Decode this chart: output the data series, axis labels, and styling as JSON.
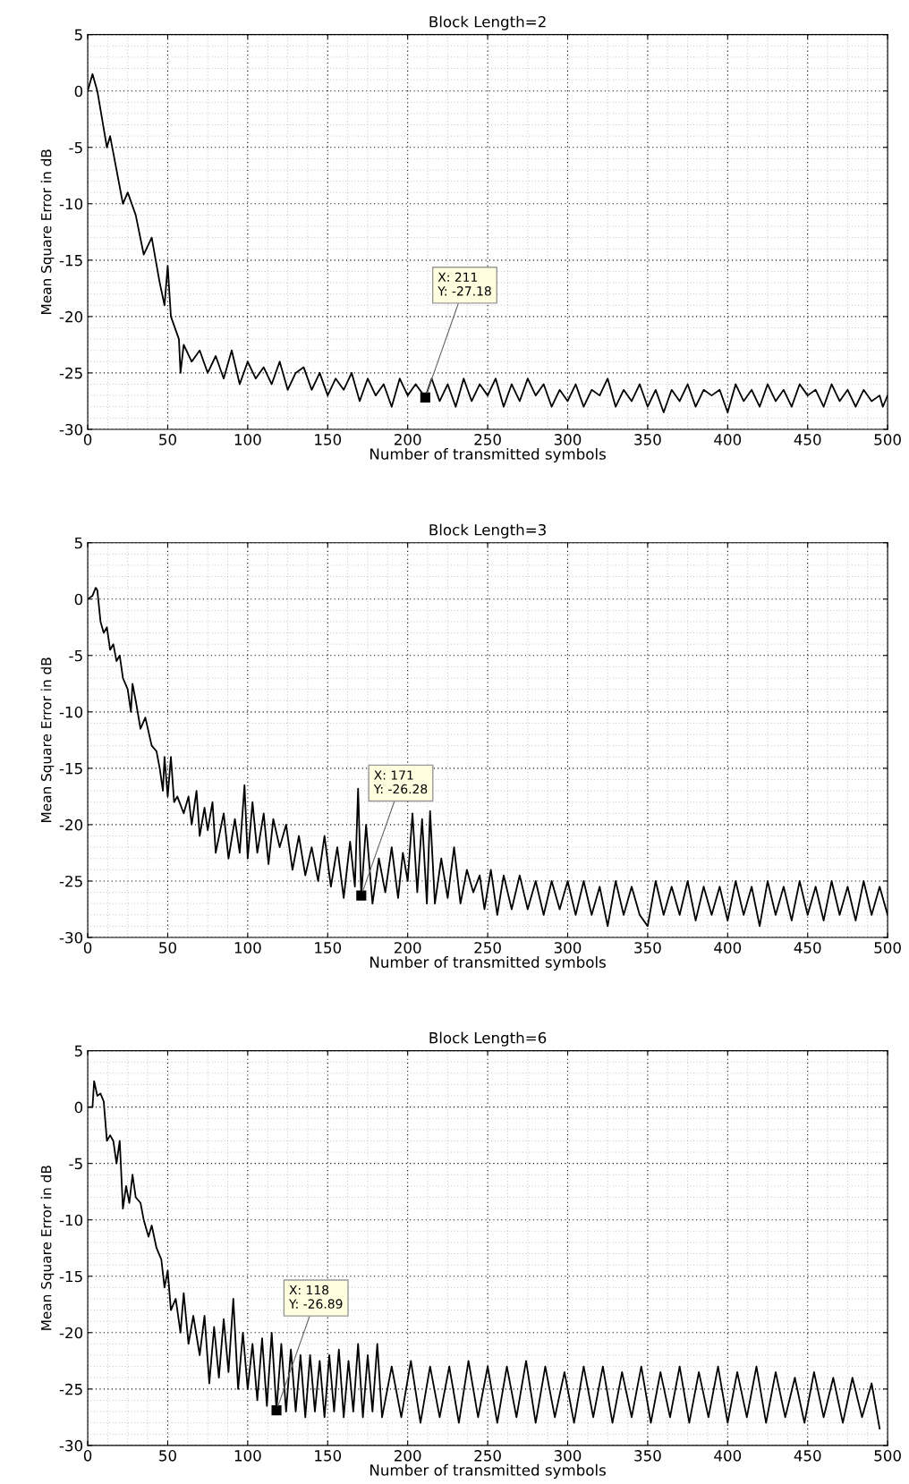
{
  "chart_data": [
    {
      "type": "line",
      "title": "Block Length=2",
      "xlabel": "Number of transmitted symbols",
      "ylabel": "Mean Square Error in dB",
      "xlim": [
        0,
        500
      ],
      "ylim": [
        -30,
        5
      ],
      "xticks": [
        0,
        50,
        100,
        150,
        200,
        250,
        300,
        350,
        400,
        450,
        500
      ],
      "yticks": [
        -30,
        -25,
        -20,
        -15,
        -10,
        -5,
        0,
        5
      ],
      "grid": true,
      "series": [
        {
          "color": "#000000",
          "x": [
            0,
            3,
            6,
            12,
            14,
            18,
            22,
            25,
            30,
            35,
            40,
            45,
            48,
            50,
            52,
            57,
            58,
            60,
            65,
            70,
            75,
            80,
            85,
            90,
            95,
            100,
            105,
            110,
            115,
            120,
            125,
            130,
            135,
            140,
            145,
            150,
            155,
            160,
            165,
            170,
            175,
            180,
            185,
            190,
            195,
            200,
            205,
            211,
            215,
            220,
            225,
            230,
            235,
            240,
            245,
            250,
            255,
            260,
            265,
            270,
            275,
            280,
            285,
            290,
            295,
            300,
            305,
            310,
            315,
            320,
            325,
            330,
            335,
            340,
            345,
            350,
            355,
            360,
            365,
            370,
            375,
            380,
            385,
            390,
            395,
            400,
            405,
            410,
            415,
            420,
            425,
            430,
            435,
            440,
            445,
            450,
            455,
            460,
            465,
            470,
            475,
            480,
            485,
            490,
            495,
            497,
            500
          ],
          "values": [
            0,
            1.5,
            0,
            -5,
            -4,
            -7,
            -10,
            -9,
            -11,
            -14.5,
            -13,
            -17,
            -19,
            -15.5,
            -20,
            -22,
            -25,
            -22.5,
            -24,
            -23,
            -25,
            -23.5,
            -25.5,
            -23,
            -26,
            -24,
            -25.5,
            -24.5,
            -26,
            -24,
            -26.5,
            -25,
            -24.5,
            -26.5,
            -25,
            -27,
            -25.5,
            -26.5,
            -25,
            -27.5,
            -25.5,
            -27,
            -26,
            -28,
            -25.5,
            -27,
            -26,
            -27.18,
            -25.5,
            -27.5,
            -26,
            -28,
            -25.5,
            -27.5,
            -26,
            -27,
            -25.5,
            -28,
            -26,
            -27.5,
            -25.5,
            -27,
            -26,
            -28,
            -26.5,
            -27.5,
            -26,
            -28,
            -26.5,
            -27,
            -25.5,
            -28,
            -26.5,
            -27.5,
            -26,
            -28,
            -26.5,
            -28.5,
            -26.5,
            -27.5,
            -26,
            -28,
            -26.5,
            -27,
            -26.5,
            -28.5,
            -26,
            -27.5,
            -26.5,
            -28,
            -26,
            -27.5,
            -26.5,
            -28,
            -26,
            -27,
            -26.5,
            -28,
            -26,
            -27.5,
            -26.5,
            -28,
            -26.5,
            -27.5,
            -27,
            -28,
            -27
          ]
        }
      ],
      "annotations": [
        {
          "text": "X: 211\nY: -27.18",
          "x": 211,
          "y": -27.18
        }
      ]
    },
    {
      "type": "line",
      "title": "Block Length=3",
      "xlabel": "Number of transmitted symbols",
      "ylabel": "Mean Square Error in dB",
      "xlim": [
        0,
        500
      ],
      "ylim": [
        -30,
        5
      ],
      "xticks": [
        0,
        50,
        100,
        150,
        200,
        250,
        300,
        350,
        400,
        450,
        500
      ],
      "yticks": [
        -30,
        -25,
        -20,
        -15,
        -10,
        -5,
        0,
        5
      ],
      "grid": true,
      "series": [
        {
          "color": "#000000",
          "x": [
            0,
            3,
            5,
            6,
            8,
            10,
            12,
            14,
            16,
            18,
            20,
            22,
            25,
            27,
            28,
            30,
            33,
            36,
            40,
            43,
            45,
            47,
            48,
            50,
            52,
            54,
            56,
            60,
            63,
            65,
            68,
            70,
            73,
            75,
            78,
            80,
            85,
            88,
            92,
            95,
            98,
            100,
            103,
            106,
            110,
            113,
            116,
            120,
            124,
            128,
            132,
            136,
            140,
            144,
            148,
            152,
            156,
            160,
            164,
            167,
            169,
            171,
            174,
            178,
            182,
            186,
            190,
            194,
            197,
            200,
            203,
            206,
            209,
            212,
            214,
            217,
            221,
            225,
            229,
            233,
            237,
            241,
            245,
            248,
            252,
            256,
            260,
            265,
            270,
            275,
            280,
            285,
            290,
            295,
            300,
            305,
            310,
            315,
            320,
            325,
            330,
            335,
            340,
            345,
            350,
            355,
            360,
            365,
            370,
            375,
            380,
            385,
            390,
            395,
            400,
            405,
            410,
            415,
            420,
            425,
            430,
            435,
            440,
            445,
            450,
            455,
            460,
            465,
            470,
            475,
            480,
            485,
            490,
            495,
            498,
            500
          ],
          "values": [
            0,
            0.3,
            1,
            0.8,
            -2,
            -3,
            -2.5,
            -4.5,
            -4,
            -5.5,
            -5,
            -7,
            -8,
            -10,
            -7.5,
            -9,
            -11.5,
            -10.5,
            -13,
            -13.5,
            -15,
            -17,
            -14,
            -17.5,
            -14,
            -18,
            -17.5,
            -19,
            -17.5,
            -20,
            -17,
            -21,
            -18.5,
            -20.5,
            -18,
            -22.5,
            -19,
            -23,
            -19.5,
            -22.5,
            -16.5,
            -23,
            -18,
            -22.5,
            -19,
            -23.5,
            -19.5,
            -22,
            -20,
            -24,
            -21,
            -24.5,
            -22,
            -25,
            -21,
            -25.5,
            -22,
            -26.5,
            -21.5,
            -25.5,
            -16.8,
            -26.28,
            -20,
            -27,
            -23,
            -26,
            -22,
            -26.5,
            -22.5,
            -25,
            -19,
            -26,
            -19.5,
            -27,
            -18.8,
            -27,
            -23,
            -26.5,
            -22,
            -27,
            -24,
            -26,
            -24.5,
            -27.5,
            -24,
            -28,
            -24.5,
            -27.5,
            -24.5,
            -27.5,
            -25,
            -28,
            -25,
            -27.5,
            -25,
            -28,
            -25,
            -28,
            -25.5,
            -29,
            -25,
            -28,
            -25.5,
            -28,
            -29,
            -25,
            -28,
            -25.5,
            -28,
            -25,
            -28.5,
            -25.5,
            -28,
            -25.5,
            -28.5,
            -25,
            -28,
            -25.5,
            -29,
            -25,
            -28,
            -25.5,
            -28.5,
            -25,
            -28,
            -25.5,
            -28.5,
            -25,
            -28,
            -25.5,
            -28.5,
            -25,
            -28,
            -25.5,
            -27,
            -28
          ]
        }
      ],
      "annotations": [
        {
          "text": "X: 171\nY: -26.28",
          "x": 171,
          "y": -26.28
        }
      ]
    },
    {
      "type": "line",
      "title": "Block Length=6",
      "xlabel": "Number of transmitted symbols",
      "ylabel": "Mean Square Error in dB",
      "xlim": [
        0,
        500
      ],
      "ylim": [
        -30,
        5
      ],
      "xticks": [
        0,
        50,
        100,
        150,
        200,
        250,
        300,
        350,
        400,
        450,
        500
      ],
      "yticks": [
        -30,
        -25,
        -20,
        -15,
        -10,
        -5,
        0,
        5
      ],
      "grid": true,
      "series": [
        {
          "color": "#000000",
          "x": [
            0,
            3,
            4,
            6,
            8,
            10,
            12,
            14,
            16,
            18,
            20,
            22,
            24,
            26,
            28,
            30,
            33,
            35,
            38,
            40,
            43,
            46,
            48,
            50,
            52,
            55,
            58,
            60,
            63,
            66,
            70,
            73,
            76,
            79,
            82,
            85,
            88,
            91,
            94,
            97,
            100,
            103,
            106,
            109,
            112,
            115,
            118,
            121,
            124,
            127,
            130,
            133,
            136,
            139,
            142,
            145,
            148,
            151,
            154,
            157,
            160,
            163,
            166,
            169,
            172,
            175,
            178,
            181,
            184,
            190,
            196,
            202,
            208,
            214,
            220,
            226,
            232,
            238,
            244,
            250,
            256,
            262,
            268,
            274,
            280,
            286,
            292,
            298,
            304,
            310,
            316,
            322,
            328,
            334,
            340,
            346,
            352,
            358,
            364,
            370,
            376,
            382,
            388,
            394,
            400,
            406,
            412,
            418,
            424,
            430,
            436,
            442,
            448,
            454,
            460,
            466,
            472,
            478,
            484,
            490,
            495
          ],
          "values": [
            0,
            0,
            2.3,
            1,
            1.2,
            0.5,
            -3,
            -2.5,
            -3,
            -5,
            -3,
            -9,
            -7,
            -8.5,
            -6,
            -8,
            -8.5,
            -10,
            -11.5,
            -10.5,
            -12.5,
            -13.5,
            -16,
            -14.5,
            -18,
            -17,
            -20,
            -16.5,
            -21,
            -18.5,
            -22,
            -18.5,
            -24.5,
            -19.5,
            -24,
            -18.8,
            -23.5,
            -17,
            -25,
            -20,
            -25,
            -21,
            -26,
            -20.5,
            -26.5,
            -20,
            -26.89,
            -21,
            -27,
            -21.5,
            -27,
            -22,
            -27.5,
            -22,
            -27,
            -22.5,
            -27.5,
            -22,
            -27,
            -21.5,
            -27.5,
            -22.5,
            -27,
            -21,
            -27.5,
            -22,
            -27,
            -21,
            -27.5,
            -23,
            -27.5,
            -22.5,
            -28,
            -23,
            -27.5,
            -23,
            -28,
            -22.5,
            -27.5,
            -23,
            -28,
            -23,
            -27.5,
            -22.5,
            -28,
            -23,
            -27.5,
            -23.5,
            -28,
            -23,
            -27.5,
            -23,
            -28,
            -23.5,
            -27.5,
            -23,
            -28,
            -23.5,
            -27.5,
            -23,
            -28,
            -23.5,
            -27.5,
            -23,
            -28,
            -23.5,
            -27.5,
            -23,
            -28,
            -23.5,
            -27.5,
            -24,
            -28,
            -23.5,
            -27.5,
            -24,
            -28,
            -24,
            -27.5,
            -24.5,
            -28.5
          ]
        }
      ],
      "annotations": [
        {
          "text": "X: 118\nY: -26.89",
          "x": 118,
          "y": -26.89
        }
      ]
    }
  ]
}
